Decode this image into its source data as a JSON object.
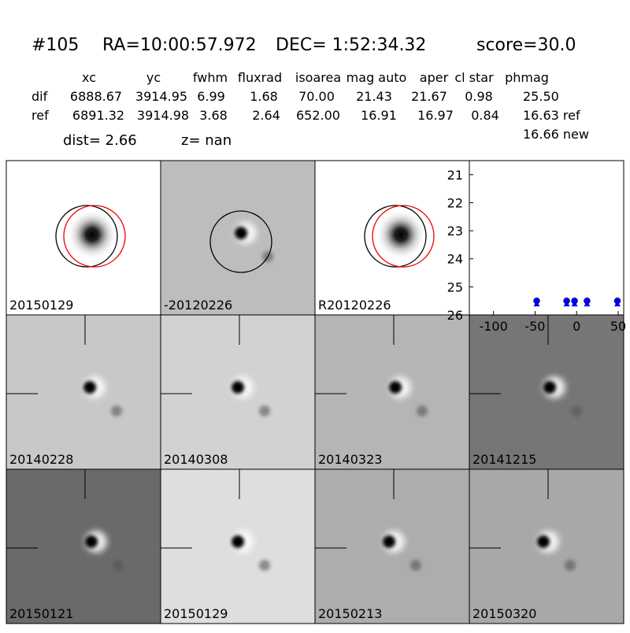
{
  "header": {
    "id": "#105",
    "ra": "RA=10:00:57.972",
    "dec": "DEC= 1:52:34.32",
    "score": "score=30.0"
  },
  "table": {
    "columns": [
      "xc",
      "yc",
      "fwhm",
      "fluxrad",
      "isoarea",
      "mag auto",
      "aper",
      "cl star",
      "phmag"
    ],
    "rows": [
      {
        "label": "dif",
        "cells": [
          "6888.67",
          "3914.95",
          "6.99",
          "1.68",
          "70.00",
          "21.43",
          "21.67",
          "0.98",
          "25.50"
        ]
      },
      {
        "label": "ref",
        "cells": [
          "6891.32",
          "3914.98",
          "3.68",
          "2.64",
          "652.00",
          "16.91",
          "16.97",
          "0.84",
          "16.63 ref"
        ]
      }
    ],
    "extra": "16.66 new"
  },
  "stats": {
    "dist": "dist=  2.66",
    "z": "z=   nan"
  },
  "panels": [
    {
      "label": "20150129"
    },
    {
      "label": "-20120226"
    },
    {
      "label": "R20120226"
    },
    {
      "label": "20140228"
    },
    {
      "label": "20140308"
    },
    {
      "label": "20140323"
    },
    {
      "label": "20141215"
    },
    {
      "label": "20150121"
    },
    {
      "label": "20150129",
      "label_color": "#ff0000"
    },
    {
      "label": "20150213"
    },
    {
      "label": "20150320"
    }
  ],
  "chart_data": {
    "type": "scatter",
    "x": [
      -48,
      -12,
      -2.5,
      12.5,
      49
    ],
    "values": [
      25.5,
      25.5,
      25.5,
      25.5,
      25.5
    ],
    "color": "#0000ff",
    "xlim": [
      -129,
      56.6
    ],
    "xticks": [
      -100,
      -50,
      0,
      50
    ],
    "ylim": [
      20.5,
      26
    ],
    "yticks": [
      21,
      22,
      23,
      24,
      25,
      26
    ],
    "y_inverted": true
  }
}
